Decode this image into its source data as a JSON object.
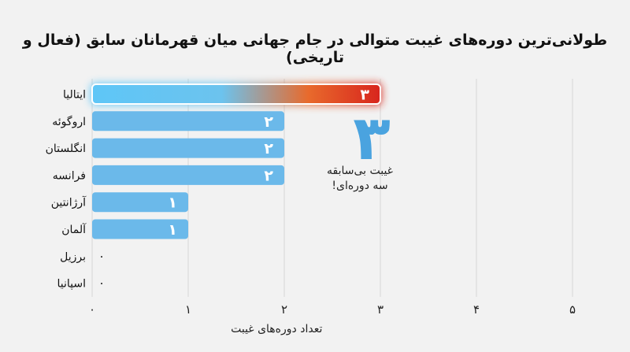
{
  "title": "طولانی‌ترین دوره‌های غیبت متوالی در جام جهانی میان قهرمانان سابق (فعال و تاریخی)",
  "callout": {
    "number": "۳",
    "line1": "غیبت بی‌سابقه",
    "line2": "سه دوره‌ای!"
  },
  "colors": {
    "bar": "#6bb9ea",
    "highlight_start": "#5ec6f7",
    "highlight_end": "#e23a22",
    "callout_number": "#4aa3df",
    "grid": "#d6d6d6"
  },
  "chart_data": {
    "type": "bar",
    "orientation": "horizontal",
    "categories": [
      "ایتالیا",
      "اروگوئه",
      "انگلستان",
      "فرانسه",
      "آرژانتین",
      "آلمان",
      "برزیل",
      "اسپانیا"
    ],
    "values": [
      3,
      2,
      2,
      2,
      1,
      1,
      0,
      0
    ],
    "value_labels": [
      "۳",
      "۲",
      "۲",
      "۲",
      "۱",
      "۱",
      "۰",
      "۰"
    ],
    "highlight": "ایتالیا",
    "xlabel": "تعداد دوره‌های غیبت",
    "xlim": [
      0,
      5
    ],
    "xticks": [
      0,
      1,
      2,
      3,
      4,
      5
    ],
    "xtick_labels": [
      "۰",
      "۱",
      "۲",
      "۳",
      "۴",
      "۵"
    ],
    "grid": true
  }
}
